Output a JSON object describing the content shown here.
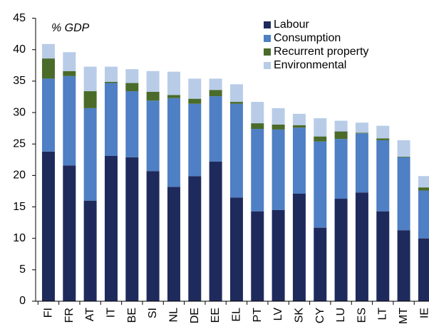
{
  "chart_data": {
    "type": "stacked_bar",
    "subtitle": "% GDP",
    "categories": [
      "FI",
      "FR",
      "AT",
      "IT",
      "BE",
      "SI",
      "NL",
      "DE",
      "EE",
      "EL",
      "PT",
      "LV",
      "SK",
      "CY",
      "LU",
      "ES",
      "LT",
      "MT",
      "IE"
    ],
    "series": [
      {
        "name": "Labour",
        "color": "#1f2a5c",
        "values": [
          23.8,
          21.6,
          16.0,
          23.1,
          22.9,
          20.7,
          18.2,
          19.9,
          22.2,
          16.5,
          14.3,
          14.5,
          17.1,
          11.7,
          16.3,
          17.3,
          14.3,
          11.3,
          10.0
        ]
      },
      {
        "name": "Consumption",
        "color": "#4f7fc4",
        "values": [
          11.6,
          14.2,
          14.7,
          11.6,
          10.5,
          11.2,
          14.1,
          11.5,
          10.4,
          14.9,
          13.1,
          12.8,
          10.5,
          13.7,
          9.5,
          9.4,
          11.3,
          11.6,
          7.6
        ]
      },
      {
        "name": "Recurrent property",
        "color": "#4a6b2a",
        "values": [
          3.2,
          0.8,
          2.7,
          0.2,
          1.3,
          1.4,
          0.5,
          0.8,
          1.0,
          0.3,
          0.9,
          0.8,
          0.4,
          0.8,
          1.2,
          0.1,
          0.3,
          0.1,
          0.5
        ]
      },
      {
        "name": "Environmental",
        "color": "#b8cce8",
        "values": [
          2.3,
          3.0,
          3.9,
          2.4,
          2.2,
          3.3,
          3.7,
          3.2,
          1.8,
          2.8,
          3.4,
          2.6,
          1.8,
          2.9,
          1.7,
          1.6,
          2.0,
          2.6,
          1.8
        ]
      }
    ],
    "ylim": [
      0,
      45
    ],
    "yticks": [
      0,
      5,
      10,
      15,
      20,
      25,
      30,
      35,
      40,
      45
    ],
    "grid": false,
    "legend": "top-right"
  }
}
